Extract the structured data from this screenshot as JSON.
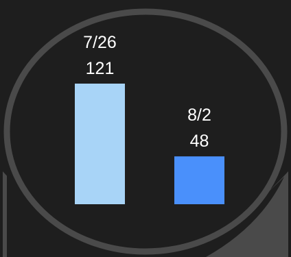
{
  "colors": {
    "background": "#1e1e1e",
    "bezel": "#4a4a4a",
    "label": "#ffffff"
  },
  "chart_data": {
    "type": "bar",
    "categories": [
      "7/26",
      "8/2"
    ],
    "values": [
      121,
      48
    ],
    "colors": [
      "#a8d4f7",
      "#4a90fb"
    ],
    "ylim": [
      0,
      121
    ],
    "grid": false,
    "legend": "none"
  }
}
